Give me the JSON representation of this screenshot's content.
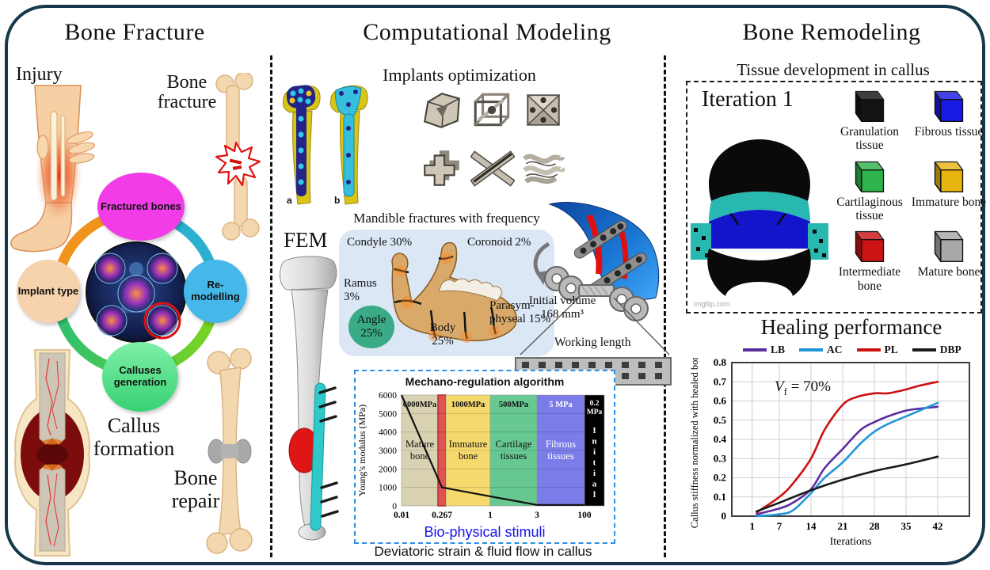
{
  "figure": {
    "border_color": "#16384a"
  },
  "panels": {
    "left": {
      "title": "Bone Fracture",
      "injury_label": "Injury",
      "bone_fracture_label": "Bone fracture",
      "callus_formation_label": "Callus formation",
      "bone_repair_label": "Bone repair",
      "cycle": {
        "top": "Fractured bones",
        "right": "Re-modelling",
        "bottom": "Calluses generation",
        "left": "Implant type"
      }
    },
    "middle": {
      "title": "Computational Modeling",
      "implants_title": "Implants optimization",
      "implant_a_label": "a",
      "implant_b_label": "b",
      "fem_label": "FEM",
      "mandible": {
        "title": "Mandible fractures with frequency",
        "condyle": "Condyle 30%",
        "coronoid": "Coronoid 2%",
        "ramus": "Ramus 3%",
        "angle": "Angle 25%",
        "body": "Body 25%",
        "parasymphyseal": "Parasym-physeal 15%"
      },
      "plate": {
        "initial_volume_line1": "Initial volume",
        "initial_volume_line2": "168 mm³",
        "working_length": "Working length"
      },
      "captions": {
        "bio_stimuli": "Bio-physical stimuli",
        "deviatoric": "Deviatoric strain & fluid flow in callus"
      }
    },
    "right": {
      "title": "Bone Remodeling",
      "tissue_box": {
        "title": "Tissue development in callus",
        "iteration_label": "Iteration 1",
        "watermark": "imgflip.com",
        "legend": [
          {
            "label": "Granulation tissue",
            "color": "#141414"
          },
          {
            "label": "Fibrous tissue",
            "color": "#1a1ae6"
          },
          {
            "label": "Cartilaginous tissue",
            "color": "#2eb44a"
          },
          {
            "label": "Immature bone",
            "color": "#e8b410"
          },
          {
            "label": "Intermediate bone",
            "color": "#cc1414"
          },
          {
            "label": "Mature bone",
            "color": "#a8a8a8"
          }
        ]
      },
      "healing_title": "Healing performance",
      "annotation": {
        "var": "V",
        "sub": "f",
        "rest": " = 70%"
      }
    }
  },
  "chart_data": [
    {
      "id": "mechano_regulation",
      "type": "line",
      "title": "Mechano-regulation algorithm",
      "xlabel": "Bio-physical stimuli",
      "ylabel": "Young's modulus (MPa)",
      "x_ticks": [
        "0.01",
        "0.267",
        "1",
        "3",
        "100"
      ],
      "y_ticks": [
        0,
        1000,
        2000,
        3000,
        4000,
        5000,
        6000
      ],
      "ylim": [
        0,
        6000
      ],
      "grid": true,
      "regions": [
        {
          "label": "Mature bone",
          "modulus": "6000MPa",
          "color": "#d9d2b2",
          "text_color": "#111111"
        },
        {
          "label": "",
          "modulus": "",
          "color": "#e05353",
          "text_color": "#111111"
        },
        {
          "label": "Immature bone",
          "modulus": "1000MPa",
          "color": "#f6d96d",
          "text_color": "#111111"
        },
        {
          "label": "Cartilage tissues",
          "modulus": "500MPa",
          "color": "#67c892",
          "text_color": "#111111"
        },
        {
          "label": "Fibrous tissues",
          "modulus": "5 MPa",
          "color": "#7c7ce8",
          "text_color": "#ffffff"
        },
        {
          "label": "Initial",
          "modulus": "0.2 MPa",
          "color": "#000000",
          "text_color": "#ffffff"
        }
      ],
      "line_color": "#111111",
      "line_xy": [
        [
          0.01,
          6000
        ],
        [
          0.267,
          1000
        ],
        [
          3,
          50
        ],
        [
          100,
          50
        ]
      ]
    },
    {
      "id": "healing_performance",
      "type": "line",
      "title": "Healing performance",
      "xlabel": "Iterations",
      "ylabel": "Callus stiffness normalized with healed bone",
      "annotation": "Vf = 70%",
      "x_ticks": [
        1,
        7,
        14,
        21,
        28,
        35,
        42
      ],
      "y_ticks": [
        0,
        0.1,
        0.2,
        0.3,
        0.4,
        0.5,
        0.6,
        0.7,
        0.8
      ],
      "xlim": [
        -3.5,
        49
      ],
      "ylim": [
        0,
        0.8
      ],
      "grid": true,
      "legend_position": "top",
      "series": [
        {
          "name": "LB",
          "color": "#5b2d9e",
          "x": [
            2,
            7,
            10,
            14,
            17,
            21,
            25,
            28,
            31,
            35,
            38,
            42
          ],
          "y": [
            0.01,
            0.04,
            0.07,
            0.14,
            0.25,
            0.35,
            0.45,
            0.49,
            0.52,
            0.55,
            0.56,
            0.57
          ]
        },
        {
          "name": "AC",
          "color": "#2196d6",
          "x": [
            2,
            7,
            10,
            14,
            17,
            21,
            25,
            28,
            31,
            35,
            38,
            42
          ],
          "y": [
            0.0,
            0.01,
            0.03,
            0.12,
            0.2,
            0.28,
            0.38,
            0.44,
            0.48,
            0.52,
            0.55,
            0.59
          ]
        },
        {
          "name": "PL",
          "color": "#cc1111",
          "x": [
            2,
            7,
            10,
            14,
            17,
            21,
            24,
            28,
            31,
            35,
            38,
            42
          ],
          "y": [
            0.02,
            0.1,
            0.17,
            0.3,
            0.45,
            0.58,
            0.62,
            0.64,
            0.64,
            0.66,
            0.68,
            0.7
          ]
        },
        {
          "name": "DBP",
          "color": "#1a1a1a",
          "x": [
            2,
            7,
            14,
            21,
            28,
            35,
            42
          ],
          "y": [
            0.025,
            0.07,
            0.135,
            0.19,
            0.235,
            0.27,
            0.31
          ]
        }
      ]
    }
  ]
}
